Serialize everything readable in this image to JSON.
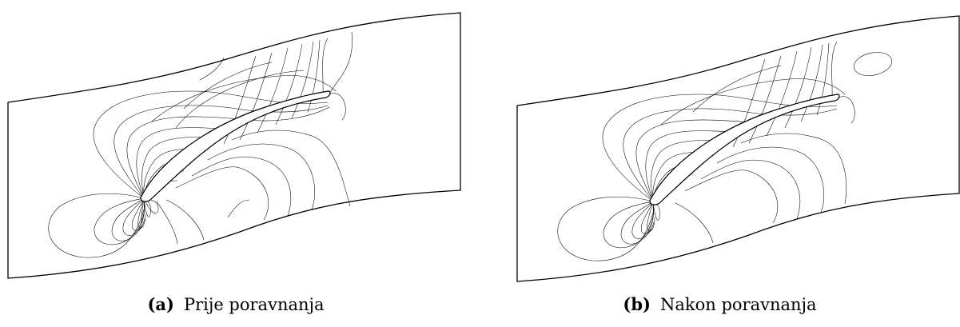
{
  "figure": {
    "panels": [
      {
        "label": "(a)",
        "caption": "Prije poravnanja"
      },
      {
        "label": "(b)",
        "caption": "Nakon poravnanja"
      }
    ]
  }
}
